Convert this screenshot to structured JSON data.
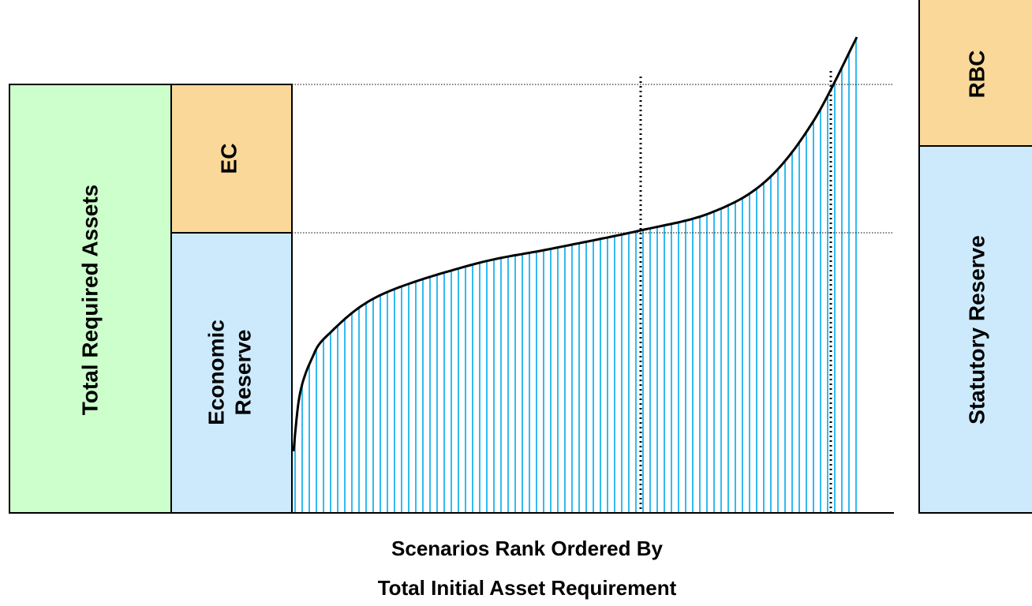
{
  "boxes": {
    "total_required_assets": "Total Required Assets",
    "ec": "EC",
    "economic_reserve": [
      "Economic",
      "Reserve"
    ],
    "rbc": "RBC",
    "statutory_reserve": "Statutory Reserve"
  },
  "x_axis_label": [
    "Scenarios Rank Ordered By",
    "Total Initial Asset Requirement"
  ]
}
